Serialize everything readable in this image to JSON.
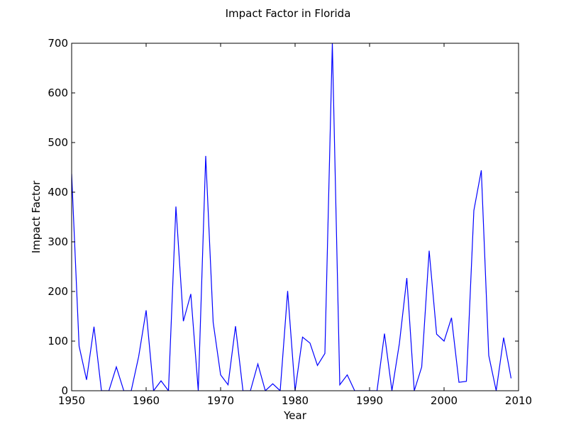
{
  "chart_data": {
    "type": "line",
    "title": "Impact Factor in Florida",
    "xlabel": "Year",
    "ylabel": "Impact Factor",
    "xlim": [
      1950,
      2010
    ],
    "ylim": [
      0,
      700
    ],
    "xticks": [
      1950,
      1960,
      1970,
      1980,
      1990,
      2000,
      2010
    ],
    "yticks": [
      0,
      100,
      200,
      300,
      400,
      500,
      600,
      700
    ],
    "grid": false,
    "line_color": "#0000ff",
    "series": [
      {
        "x": [
          1950,
          1951,
          1952,
          1953,
          1954,
          1955,
          1956,
          1957,
          1958,
          1959,
          1960,
          1961,
          1962,
          1963,
          1964,
          1965,
          1966,
          1967,
          1968,
          1969,
          1970,
          1971,
          1972,
          1973,
          1974,
          1975,
          1976,
          1977,
          1978,
          1979,
          1980,
          1981,
          1982,
          1983,
          1984,
          1985,
          1986,
          1987,
          1988,
          1989,
          1990,
          1991,
          1992,
          1993,
          1994,
          1995,
          1996,
          1997,
          1998,
          1999,
          2000,
          2001,
          2002,
          2003,
          2004,
          2005,
          2006,
          2007,
          2008,
          2009
        ],
        "values": [
          437,
          90,
          22,
          129,
          0,
          0,
          48,
          0,
          0,
          69,
          162,
          0,
          20,
          0,
          371,
          140,
          195,
          0,
          473,
          138,
          32,
          12,
          130,
          0,
          0,
          54,
          0,
          14,
          0,
          201,
          0,
          108,
          96,
          51,
          75,
          700,
          12,
          32,
          0,
          0,
          0,
          0,
          115,
          0,
          95,
          227,
          0,
          48,
          282,
          114,
          100,
          147,
          17,
          19,
          363,
          444,
          71,
          0,
          107,
          25
        ]
      }
    ]
  }
}
